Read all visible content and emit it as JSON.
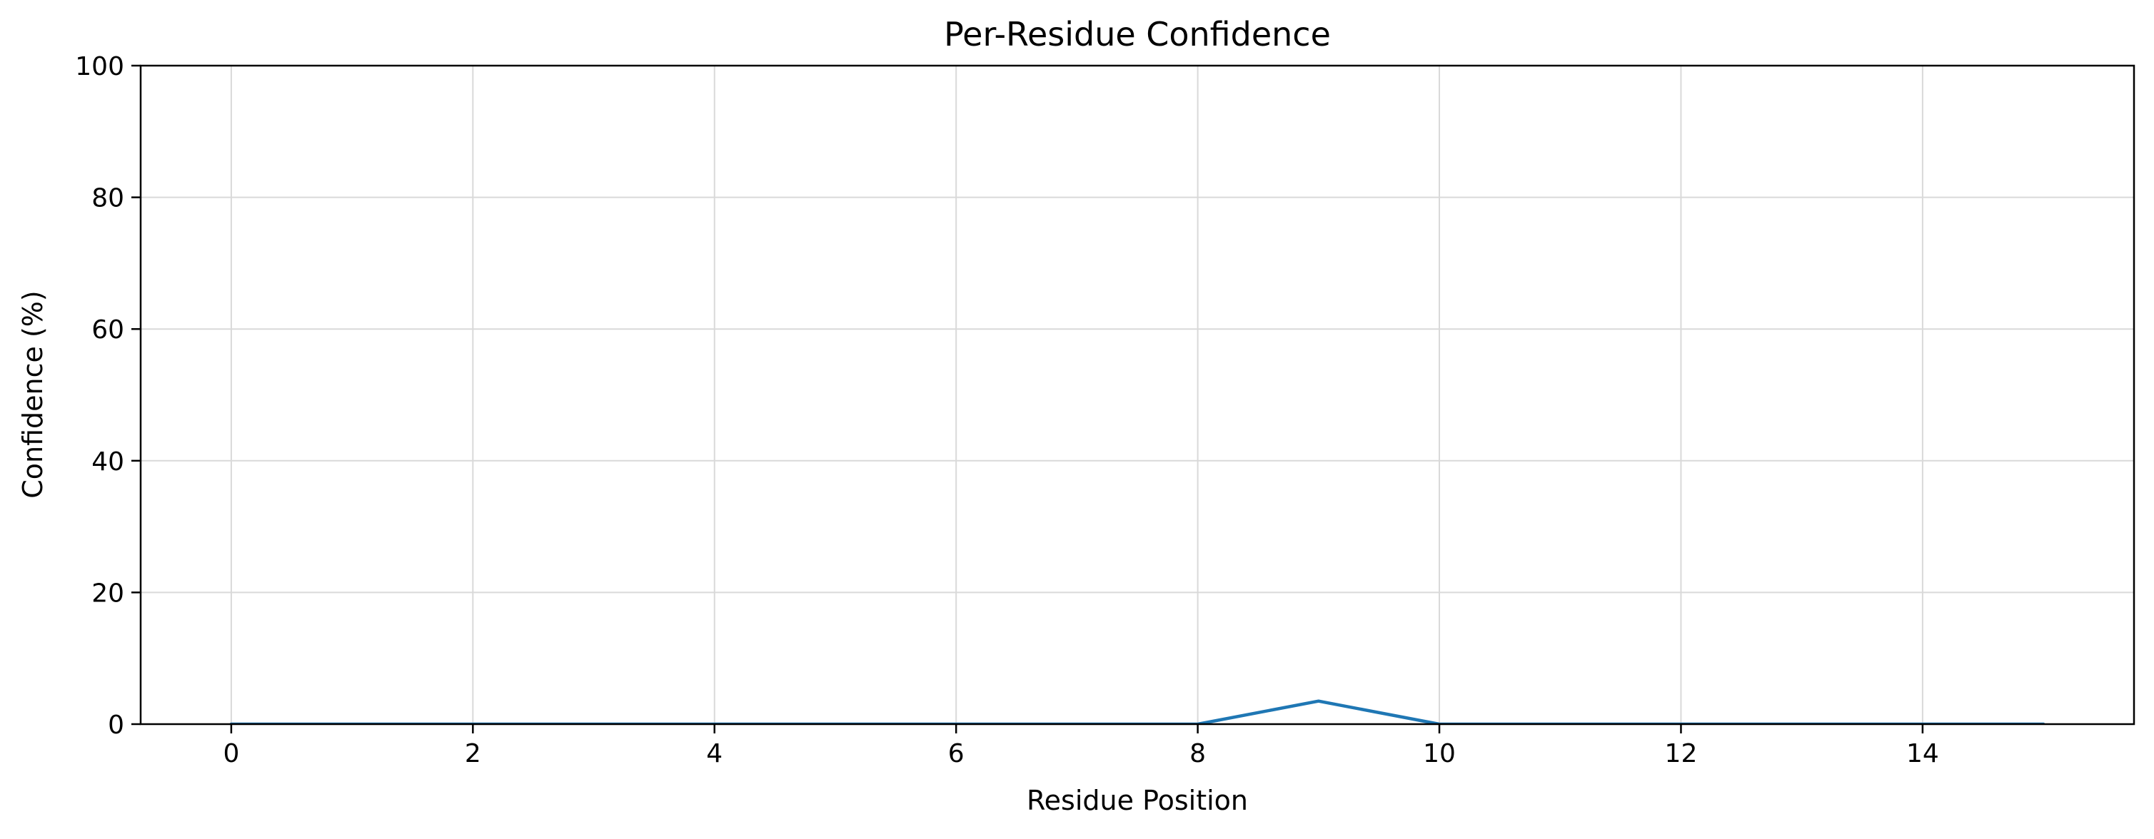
{
  "chart_data": {
    "type": "line",
    "title": "Per-Residue Confidence",
    "xlabel": "Residue Position",
    "ylabel": "Confidence (%)",
    "xlim": [
      -0.75,
      15.75
    ],
    "ylim": [
      0,
      100
    ],
    "xticks": [
      0,
      2,
      4,
      6,
      8,
      10,
      12,
      14
    ],
    "yticks": [
      0,
      20,
      40,
      60,
      80,
      100
    ],
    "grid": true,
    "series": [
      {
        "color": "#1f77b4",
        "x": [
          0,
          1,
          2,
          3,
          4,
          5,
          6,
          7,
          8,
          9,
          10,
          11,
          12,
          13,
          14,
          15
        ],
        "values": [
          0,
          0,
          0,
          0,
          0,
          0,
          0,
          0,
          0,
          3.5,
          0,
          0,
          0,
          0,
          0,
          0
        ]
      }
    ]
  }
}
